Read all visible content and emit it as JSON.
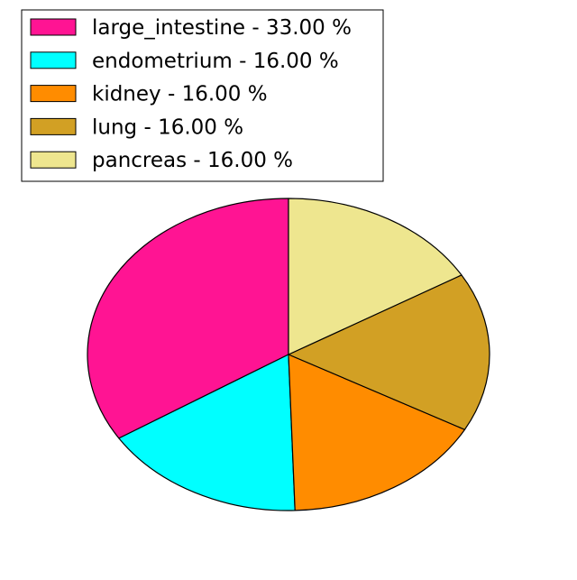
{
  "chart_data": {
    "type": "pie",
    "title": "",
    "legend_position": "top-left",
    "slices": [
      {
        "label": "large_intestine",
        "value": 33.0,
        "legend_text": "large_intestine - 33.00 %",
        "color": "#ff1493"
      },
      {
        "label": "endometrium",
        "value": 16.0,
        "legend_text": "endometrium - 16.00 %",
        "color": "#00ffff"
      },
      {
        "label": "kidney",
        "value": 16.0,
        "legend_text": "kidney - 16.00 %",
        "color": "#ff8c00"
      },
      {
        "label": "lung",
        "value": 16.0,
        "legend_text": "lung - 16.00 %",
        "color": "#d2a024"
      },
      {
        "label": "pancreas",
        "value": 16.0,
        "legend_text": "pancreas - 16.00 %",
        "color": "#eee68f"
      }
    ]
  }
}
